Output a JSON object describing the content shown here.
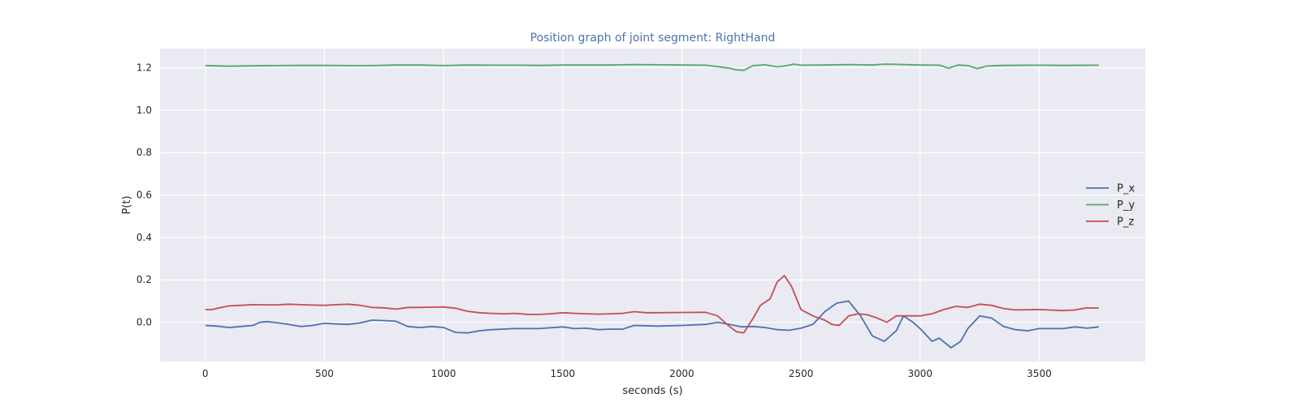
{
  "chart_data": {
    "type": "line",
    "title": "Position graph of joint segment: RightHand",
    "title_color": "#4c72b0",
    "xlabel": "seconds (s)",
    "ylabel": "P(t)",
    "xlim": [
      -190,
      3945
    ],
    "ylim": [
      -0.185,
      1.29
    ],
    "x_ticks": [
      0,
      500,
      1000,
      1500,
      2000,
      2500,
      3000,
      3500
    ],
    "x_tick_labels": [
      "0",
      "500",
      "1000",
      "1500",
      "2000",
      "2500",
      "3000",
      "3500"
    ],
    "y_ticks": [
      0.0,
      0.2,
      0.4,
      0.6,
      0.8,
      1.0,
      1.2
    ],
    "y_tick_labels": [
      "0.0",
      "0.2",
      "0.4",
      "0.6",
      "0.8",
      "1.0",
      "1.2"
    ],
    "grid": true,
    "background": "#eaeaf2",
    "legend_position": "center-right",
    "series": [
      {
        "name": "P_x",
        "color": "#4c72b0",
        "points": [
          [
            0,
            -0.015
          ],
          [
            50,
            -0.018
          ],
          [
            100,
            -0.025
          ],
          [
            150,
            -0.02
          ],
          [
            200,
            -0.015
          ],
          [
            230,
            0.0
          ],
          [
            260,
            0.003
          ],
          [
            300,
            -0.002
          ],
          [
            350,
            -0.01
          ],
          [
            400,
            -0.02
          ],
          [
            450,
            -0.015
          ],
          [
            500,
            -0.005
          ],
          [
            550,
            -0.008
          ],
          [
            600,
            -0.01
          ],
          [
            650,
            -0.003
          ],
          [
            700,
            0.01
          ],
          [
            750,
            0.008
          ],
          [
            800,
            0.005
          ],
          [
            850,
            -0.02
          ],
          [
            900,
            -0.025
          ],
          [
            950,
            -0.02
          ],
          [
            1000,
            -0.025
          ],
          [
            1050,
            -0.048
          ],
          [
            1100,
            -0.05
          ],
          [
            1150,
            -0.04
          ],
          [
            1200,
            -0.035
          ],
          [
            1300,
            -0.03
          ],
          [
            1400,
            -0.03
          ],
          [
            1500,
            -0.022
          ],
          [
            1550,
            -0.03
          ],
          [
            1600,
            -0.028
          ],
          [
            1650,
            -0.035
          ],
          [
            1700,
            -0.032
          ],
          [
            1750,
            -0.033
          ],
          [
            1800,
            -0.015
          ],
          [
            1900,
            -0.018
          ],
          [
            2000,
            -0.015
          ],
          [
            2100,
            -0.01
          ],
          [
            2150,
            0.0
          ],
          [
            2200,
            -0.01
          ],
          [
            2250,
            -0.022
          ],
          [
            2300,
            -0.02
          ],
          [
            2350,
            -0.025
          ],
          [
            2400,
            -0.035
          ],
          [
            2450,
            -0.038
          ],
          [
            2500,
            -0.028
          ],
          [
            2550,
            -0.01
          ],
          [
            2600,
            0.05
          ],
          [
            2650,
            0.09
          ],
          [
            2700,
            0.1
          ],
          [
            2750,
            0.03
          ],
          [
            2800,
            -0.065
          ],
          [
            2850,
            -0.09
          ],
          [
            2900,
            -0.04
          ],
          [
            2930,
            0.03
          ],
          [
            2970,
            0.0
          ],
          [
            3000,
            -0.03
          ],
          [
            3050,
            -0.09
          ],
          [
            3080,
            -0.075
          ],
          [
            3130,
            -0.12
          ],
          [
            3170,
            -0.09
          ],
          [
            3200,
            -0.03
          ],
          [
            3250,
            0.03
          ],
          [
            3300,
            0.02
          ],
          [
            3350,
            -0.02
          ],
          [
            3400,
            -0.035
          ],
          [
            3450,
            -0.04
          ],
          [
            3500,
            -0.03
          ],
          [
            3600,
            -0.03
          ],
          [
            3650,
            -0.022
          ],
          [
            3700,
            -0.028
          ],
          [
            3750,
            -0.022
          ]
        ]
      },
      {
        "name": "P_y",
        "color": "#55a868",
        "points": [
          [
            0,
            1.21
          ],
          [
            100,
            1.207
          ],
          [
            200,
            1.209
          ],
          [
            300,
            1.21
          ],
          [
            400,
            1.211
          ],
          [
            500,
            1.211
          ],
          [
            600,
            1.21
          ],
          [
            700,
            1.21
          ],
          [
            800,
            1.213
          ],
          [
            900,
            1.213
          ],
          [
            1000,
            1.21
          ],
          [
            1100,
            1.213
          ],
          [
            1200,
            1.212
          ],
          [
            1300,
            1.212
          ],
          [
            1400,
            1.211
          ],
          [
            1500,
            1.213
          ],
          [
            1600,
            1.213
          ],
          [
            1700,
            1.213
          ],
          [
            1800,
            1.215
          ],
          [
            1900,
            1.214
          ],
          [
            2000,
            1.213
          ],
          [
            2100,
            1.212
          ],
          [
            2150,
            1.205
          ],
          [
            2200,
            1.198
          ],
          [
            2230,
            1.19
          ],
          [
            2260,
            1.188
          ],
          [
            2300,
            1.21
          ],
          [
            2350,
            1.214
          ],
          [
            2400,
            1.204
          ],
          [
            2430,
            1.208
          ],
          [
            2470,
            1.217
          ],
          [
            2500,
            1.212
          ],
          [
            2600,
            1.213
          ],
          [
            2700,
            1.215
          ],
          [
            2800,
            1.213
          ],
          [
            2850,
            1.217
          ],
          [
            2900,
            1.216
          ],
          [
            3000,
            1.213
          ],
          [
            3080,
            1.212
          ],
          [
            3120,
            1.198
          ],
          [
            3160,
            1.213
          ],
          [
            3200,
            1.21
          ],
          [
            3240,
            1.196
          ],
          [
            3280,
            1.208
          ],
          [
            3350,
            1.211
          ],
          [
            3500,
            1.212
          ],
          [
            3600,
            1.211
          ],
          [
            3750,
            1.212
          ]
        ]
      },
      {
        "name": "P_z",
        "color": "#c44e52",
        "points": [
          [
            0,
            0.06
          ],
          [
            30,
            0.06
          ],
          [
            60,
            0.068
          ],
          [
            100,
            0.077
          ],
          [
            150,
            0.08
          ],
          [
            200,
            0.083
          ],
          [
            250,
            0.082
          ],
          [
            300,
            0.082
          ],
          [
            350,
            0.085
          ],
          [
            400,
            0.083
          ],
          [
            450,
            0.081
          ],
          [
            500,
            0.08
          ],
          [
            550,
            0.083
          ],
          [
            600,
            0.085
          ],
          [
            650,
            0.08
          ],
          [
            700,
            0.07
          ],
          [
            750,
            0.068
          ],
          [
            800,
            0.062
          ],
          [
            850,
            0.07
          ],
          [
            900,
            0.07
          ],
          [
            950,
            0.071
          ],
          [
            1000,
            0.072
          ],
          [
            1050,
            0.066
          ],
          [
            1100,
            0.052
          ],
          [
            1150,
            0.045
          ],
          [
            1200,
            0.042
          ],
          [
            1250,
            0.04
          ],
          [
            1300,
            0.042
          ],
          [
            1350,
            0.037
          ],
          [
            1400,
            0.037
          ],
          [
            1450,
            0.04
          ],
          [
            1500,
            0.045
          ],
          [
            1550,
            0.042
          ],
          [
            1600,
            0.04
          ],
          [
            1650,
            0.038
          ],
          [
            1700,
            0.04
          ],
          [
            1750,
            0.042
          ],
          [
            1800,
            0.05
          ],
          [
            1850,
            0.045
          ],
          [
            1900,
            0.045
          ],
          [
            2000,
            0.046
          ],
          [
            2100,
            0.047
          ],
          [
            2150,
            0.03
          ],
          [
            2200,
            -0.02
          ],
          [
            2230,
            -0.045
          ],
          [
            2260,
            -0.05
          ],
          [
            2300,
            0.02
          ],
          [
            2330,
            0.08
          ],
          [
            2370,
            0.11
          ],
          [
            2400,
            0.19
          ],
          [
            2430,
            0.22
          ],
          [
            2460,
            0.17
          ],
          [
            2500,
            0.06
          ],
          [
            2550,
            0.03
          ],
          [
            2600,
            0.01
          ],
          [
            2630,
            -0.01
          ],
          [
            2660,
            -0.015
          ],
          [
            2700,
            0.03
          ],
          [
            2740,
            0.04
          ],
          [
            2780,
            0.035
          ],
          [
            2820,
            0.02
          ],
          [
            2860,
            0.0
          ],
          [
            2900,
            0.03
          ],
          [
            2950,
            0.03
          ],
          [
            3000,
            0.03
          ],
          [
            3050,
            0.04
          ],
          [
            3100,
            0.06
          ],
          [
            3150,
            0.075
          ],
          [
            3200,
            0.07
          ],
          [
            3250,
            0.085
          ],
          [
            3300,
            0.08
          ],
          [
            3350,
            0.065
          ],
          [
            3400,
            0.058
          ],
          [
            3500,
            0.06
          ],
          [
            3600,
            0.055
          ],
          [
            3650,
            0.058
          ],
          [
            3700,
            0.068
          ],
          [
            3750,
            0.067
          ]
        ]
      }
    ]
  }
}
